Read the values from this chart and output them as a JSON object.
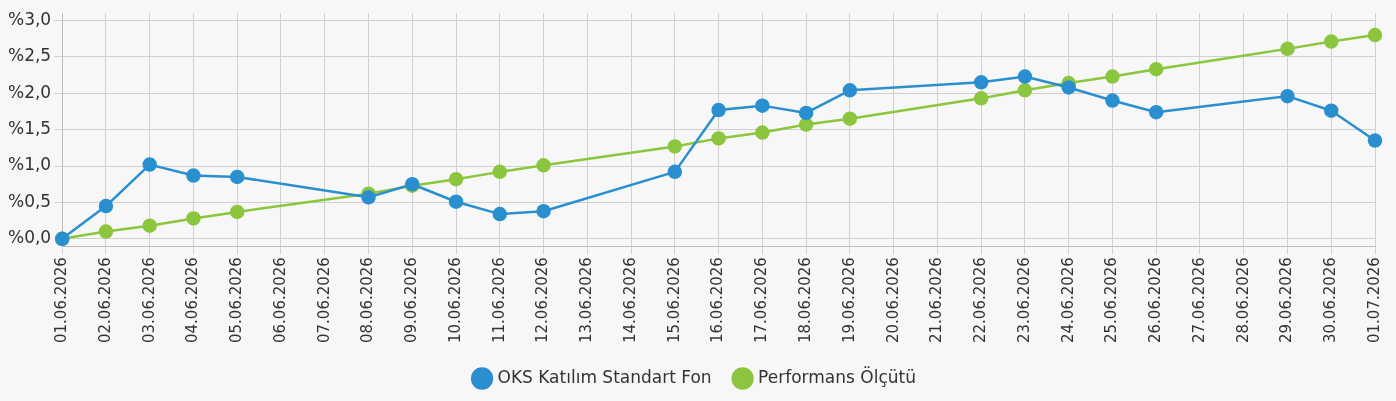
{
  "chart_data": {
    "type": "line",
    "categories": [
      "01.06.2026",
      "02.06.2026",
      "03.06.2026",
      "04.06.2026",
      "05.06.2026",
      "06.06.2026",
      "07.06.2026",
      "08.06.2026",
      "09.06.2026",
      "10.06.2026",
      "11.06.2026",
      "12.06.2026",
      "13.06.2026",
      "14.06.2026",
      "15.06.2026",
      "16.06.2026",
      "17.06.2026",
      "18.06.2026",
      "19.06.2026",
      "20.06.2026",
      "21.06.2026",
      "22.06.2026",
      "23.06.2026",
      "24.06.2026",
      "25.06.2026",
      "26.06.2026",
      "27.06.2026",
      "28.06.2026",
      "29.06.2026",
      "30.06.2026",
      "01.07.2026"
    ],
    "series": [
      {
        "name": "OKS Katılım Standart Fon",
        "color": "#2a8fcf",
        "values": [
          0.0,
          0.45,
          1.02,
          0.87,
          0.85,
          null,
          null,
          0.57,
          0.75,
          0.51,
          0.34,
          0.38,
          null,
          null,
          0.92,
          1.77,
          1.83,
          1.73,
          2.04,
          null,
          null,
          2.15,
          2.23,
          2.08,
          1.9,
          1.74,
          null,
          null,
          1.96,
          1.76,
          1.35
        ]
      },
      {
        "name": "Performans Ölçütü",
        "color": "#8cc63f",
        "values": [
          0.0,
          0.1,
          0.18,
          0.28,
          0.37,
          null,
          null,
          0.62,
          0.73,
          0.82,
          0.92,
          1.01,
          null,
          null,
          1.27,
          1.38,
          1.46,
          1.57,
          1.65,
          null,
          null,
          1.93,
          2.04,
          2.14,
          2.23,
          2.33,
          null,
          null,
          2.61,
          2.71,
          2.8
        ]
      }
    ],
    "ylim": [
      -0.1,
      3.1
    ],
    "yticks": [
      {
        "value": 0,
        "label": "%0,0"
      },
      {
        "value": 0.5,
        "label": "%0,5"
      },
      {
        "value": 1,
        "label": "%1,0"
      },
      {
        "value": 1.5,
        "label": "%1,5"
      },
      {
        "value": 2,
        "label": "%2,0"
      },
      {
        "value": 2.5,
        "label": "%2,5"
      },
      {
        "value": 3,
        "label": "%3,0"
      }
    ],
    "grid": true,
    "legend": "bottom",
    "marker": "circle",
    "line_style": "solid"
  }
}
